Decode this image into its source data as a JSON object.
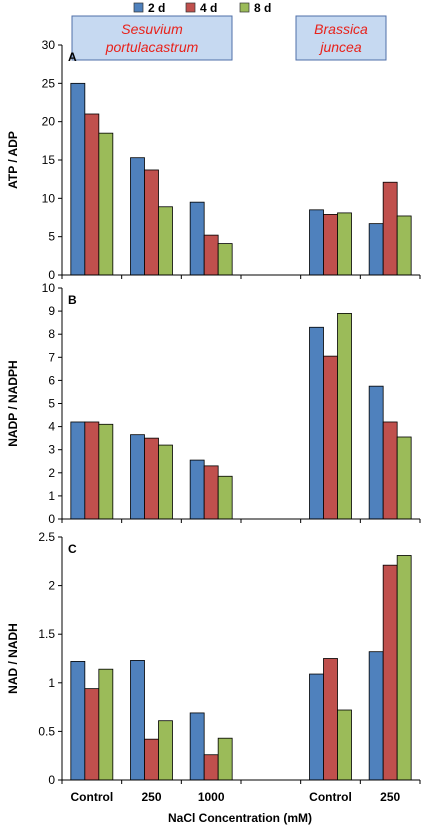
{
  "legend": [
    {
      "label": "2 d",
      "color": "#4f81bd"
    },
    {
      "label": "4 d",
      "color": "#c0504d"
    },
    {
      "label": "8 d",
      "color": "#9bbb59"
    }
  ],
  "species": [
    {
      "line1": "Sesuvium",
      "line2": "portulacastrum"
    },
    {
      "line1": "Brassica",
      "line2": "juncea"
    }
  ],
  "xlabel": "NaCl Concentration (mM)",
  "categories": [
    "Control",
    "250",
    "1000",
    "",
    "Control",
    "250"
  ],
  "chart_data": [
    {
      "type": "bar",
      "panel": "A",
      "ylabel": "ATP / ADP",
      "ylim": [
        0,
        30
      ],
      "yticks": [
        0,
        5,
        10,
        15,
        20,
        25,
        30
      ],
      "categories": [
        "Control",
        "250",
        "1000",
        "",
        "Control",
        "250"
      ],
      "series": [
        {
          "name": "2 d",
          "values": [
            25.0,
            15.3,
            9.5,
            null,
            8.5,
            6.7
          ]
        },
        {
          "name": "4 d",
          "values": [
            21.0,
            13.7,
            5.2,
            null,
            7.9,
            12.1
          ]
        },
        {
          "name": "8 d",
          "values": [
            18.5,
            8.9,
            4.1,
            null,
            8.1,
            7.7
          ]
        }
      ]
    },
    {
      "type": "bar",
      "panel": "B",
      "ylabel": "NADP / NADPH",
      "ylim": [
        0,
        10
      ],
      "yticks": [
        0,
        1,
        2,
        3,
        4,
        5,
        6,
        7,
        8,
        9,
        10
      ],
      "categories": [
        "Control",
        "250",
        "1000",
        "",
        "Control",
        "250"
      ],
      "series": [
        {
          "name": "2 d",
          "values": [
            4.2,
            3.65,
            2.55,
            null,
            8.3,
            5.75
          ]
        },
        {
          "name": "4 d",
          "values": [
            4.2,
            3.5,
            2.3,
            null,
            7.05,
            4.2
          ]
        },
        {
          "name": "8 d",
          "values": [
            4.1,
            3.2,
            1.85,
            null,
            8.9,
            3.55
          ]
        }
      ]
    },
    {
      "type": "bar",
      "panel": "C",
      "ylabel": "NAD / NADH",
      "ylim": [
        0,
        2.5
      ],
      "yticks": [
        0,
        0.5,
        1,
        1.5,
        2,
        2.5
      ],
      "categories": [
        "Control",
        "250",
        "1000",
        "",
        "Control",
        "250"
      ],
      "series": [
        {
          "name": "2 d",
          "values": [
            1.22,
            1.23,
            0.69,
            null,
            1.09,
            1.32
          ]
        },
        {
          "name": "4 d",
          "values": [
            0.94,
            0.42,
            0.26,
            null,
            1.25,
            2.21
          ]
        },
        {
          "name": "8 d",
          "values": [
            1.14,
            0.61,
            0.43,
            null,
            0.72,
            2.31
          ]
        }
      ]
    }
  ]
}
